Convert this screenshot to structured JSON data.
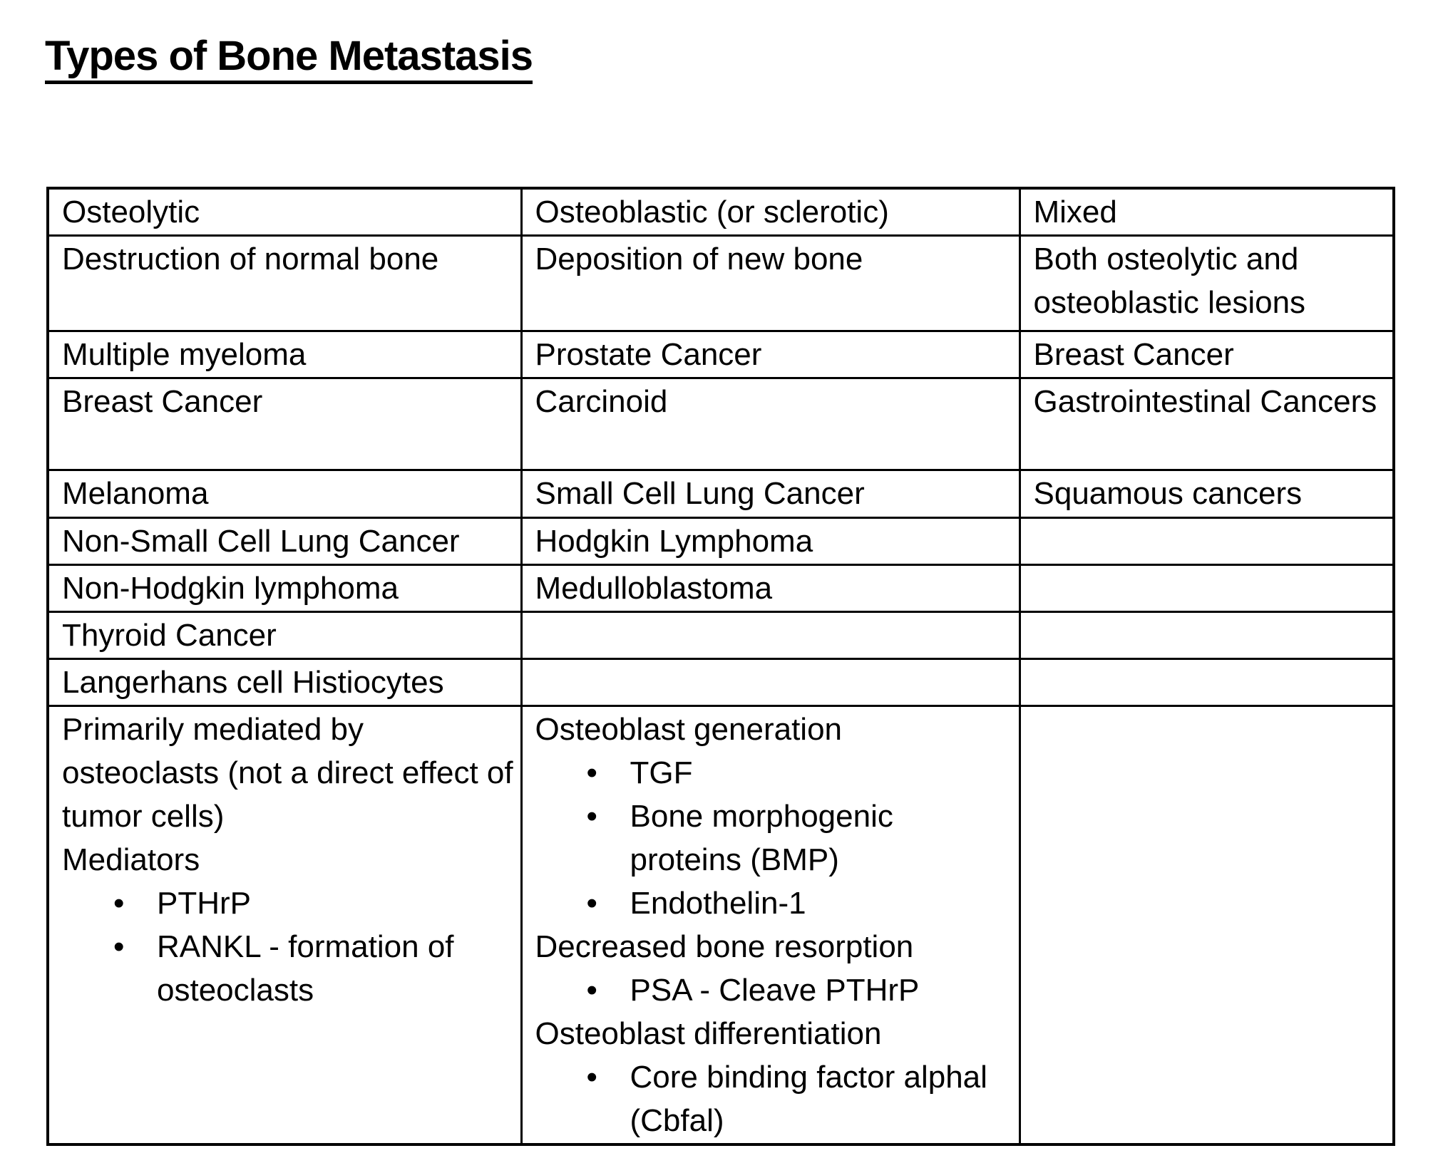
{
  "page": {
    "title": "Types of Bone Metastasis"
  },
  "colors": {
    "background": "#ffffff",
    "text": "#000000",
    "border": "#000000"
  },
  "icons": {
    "bullet": "•"
  },
  "table": {
    "rows": [
      {
        "cells": [
          "Osteolytic",
          "Osteoblastic (or sclerotic)",
          "Mixed"
        ]
      },
      {
        "cells": [
          "Destruction of normal bone",
          "Deposition of new bone",
          "Both osteolytic and osteoblastic lesions"
        ]
      },
      {
        "cells": [
          "Multiple myeloma",
          "Prostate Cancer",
          "Breast Cancer"
        ]
      },
      {
        "cells": [
          "Breast Cancer",
          "Carcinoid",
          "Gastrointestinal Cancers"
        ]
      },
      {
        "cells": [
          "Melanoma",
          "Small Cell Lung Cancer",
          "Squamous cancers"
        ]
      },
      {
        "cells": [
          "Non-Small Cell Lung Cancer",
          "Hodgkin Lymphoma",
          ""
        ]
      },
      {
        "cells": [
          "Non-Hodgkin lymphoma",
          "Medulloblastoma",
          ""
        ]
      },
      {
        "cells": [
          "Thyroid Cancer",
          "",
          ""
        ]
      },
      {
        "cells": [
          "Langerhans cell Histiocytes",
          "",
          ""
        ]
      }
    ],
    "mechanism": {
      "osteolytic": {
        "intro": "Primarily mediated by osteoclasts (not a direct effect of tumor cells)",
        "label": "Mediators",
        "bullets": [
          "PTHrP",
          "RANKL - formation of osteoclasts"
        ]
      },
      "osteoblastic": {
        "sections": [
          {
            "heading": "Osteoblast generation",
            "bullets": [
              "TGF",
              "Bone morphogenic proteins (BMP)",
              "Endothelin-1"
            ]
          },
          {
            "heading": "Decreased bone resorption",
            "bullets": [
              "PSA - Cleave PTHrP"
            ]
          },
          {
            "heading": "Osteoblast differentiation",
            "bullets": [
              "Core binding factor alphal (Cbfal)"
            ]
          }
        ]
      },
      "mixed": ""
    }
  }
}
